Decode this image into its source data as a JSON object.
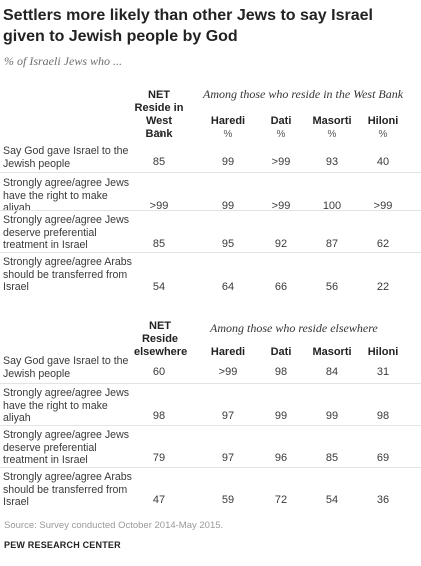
{
  "title": "Settlers more likely than other Jews to say Israel given to Jewish people by God",
  "subtitle": "% of Israeli Jews who ...",
  "percent_sign": "%",
  "west_bank": {
    "net_header": "NET Reside in West Bank",
    "among": "Among those who reside in the West Bank",
    "columns": [
      "Haredi",
      "Dati",
      "Masorti",
      "Hiloni"
    ],
    "rows": [
      {
        "label": "Say God gave Israel to the Jewish people",
        "values": [
          "85",
          "99",
          ">99",
          "93",
          "40"
        ]
      },
      {
        "label": "Strongly agree/agree Jews have the right to make aliyah",
        "values": [
          ">99",
          "99",
          ">99",
          "100",
          ">99"
        ]
      },
      {
        "label": "Strongly agree/agree Jews deserve preferential treatment in Israel",
        "values": [
          "85",
          "95",
          "92",
          "87",
          "62"
        ]
      },
      {
        "label": "Strongly agree/agree Arabs should be transferred from Israel",
        "values": [
          "54",
          "64",
          "66",
          "56",
          "22"
        ]
      }
    ]
  },
  "elsewhere": {
    "net_header": "NET Reside elsewhere",
    "among": "Among those who reside elsewhere",
    "columns": [
      "Haredi",
      "Dati",
      "Masorti",
      "Hiloni"
    ],
    "rows": [
      {
        "label": "Say God gave Israel to the Jewish people",
        "values": [
          "60",
          ">99",
          "98",
          "84",
          "31"
        ]
      },
      {
        "label": "Strongly agree/agree Jews have the right to make aliyah",
        "values": [
          "98",
          "97",
          "99",
          "99",
          "98"
        ]
      },
      {
        "label": "Strongly agree/agree Jews deserve preferential treatment in Israel",
        "values": [
          "79",
          "97",
          "96",
          "85",
          "69"
        ]
      },
      {
        "label": "Strongly agree/agree Arabs should be transferred from Israel",
        "values": [
          "47",
          "59",
          "72",
          "54",
          "36"
        ]
      }
    ]
  },
  "source": "Source: Survey conducted October 2014-May 2015.",
  "organization": "PEW RESEARCH CENTER"
}
